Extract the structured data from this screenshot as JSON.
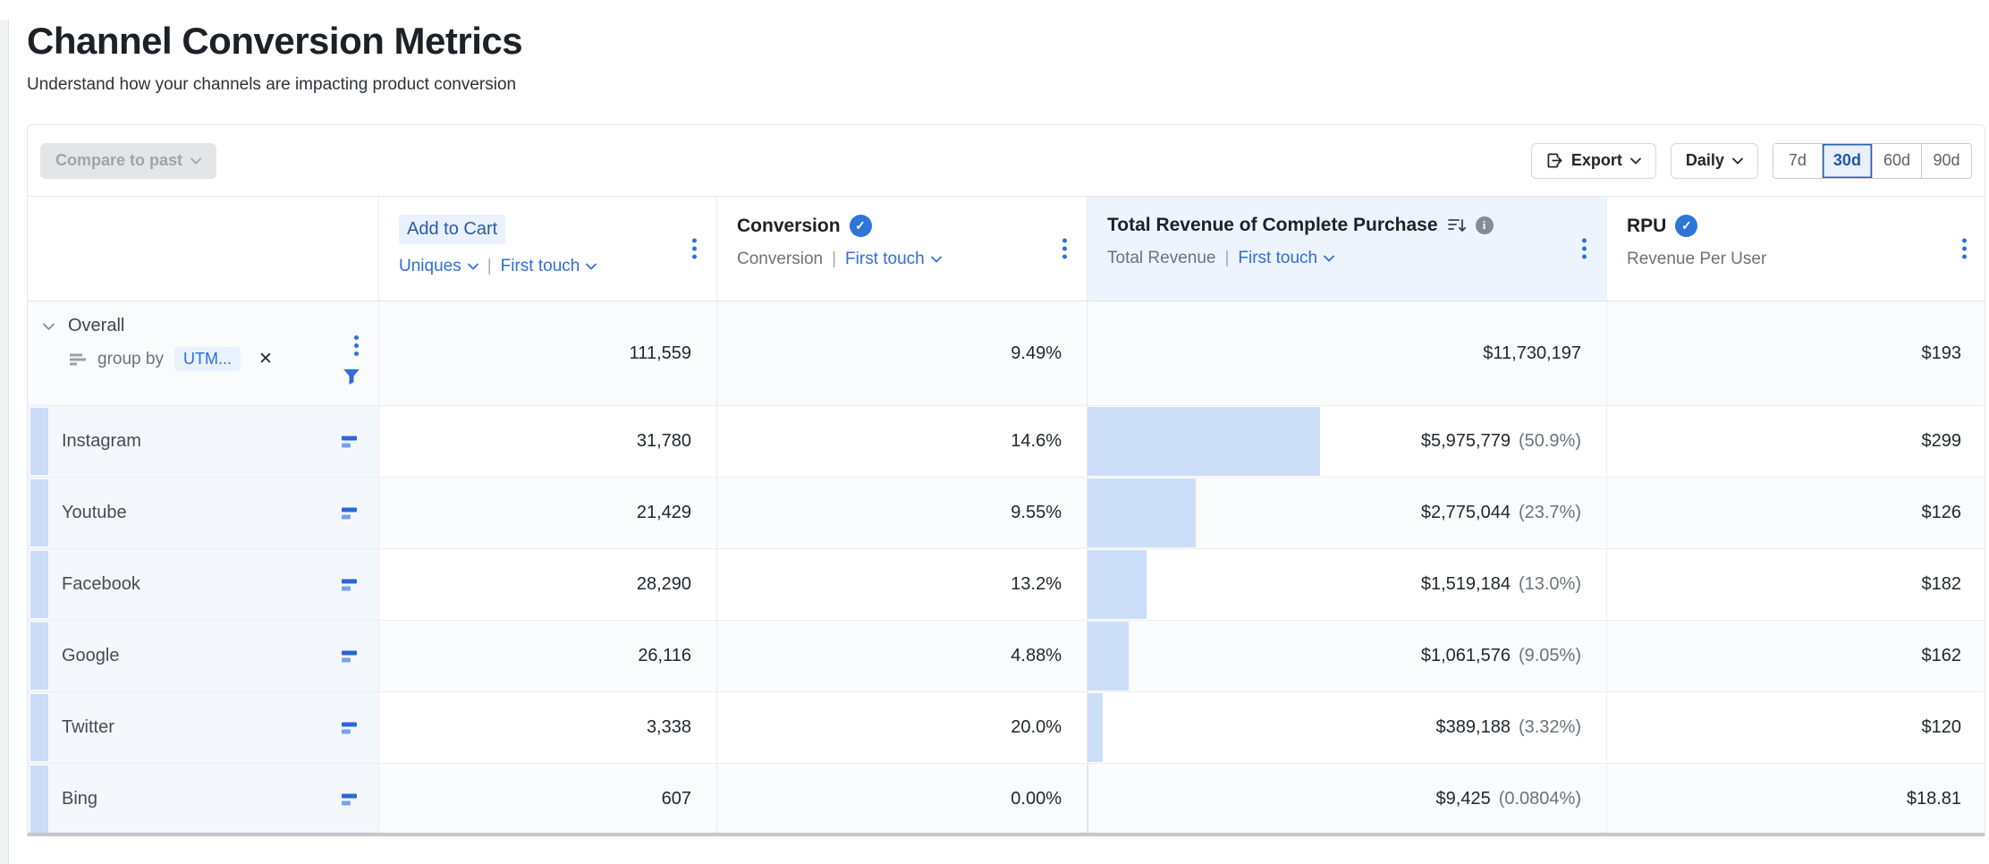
{
  "page": {
    "title": "Channel Conversion Metrics",
    "subtitle": "Understand how your channels are impacting product conversion"
  },
  "toolbar": {
    "compare_label": "Compare to past",
    "export_label": "Export",
    "interval_label": "Daily",
    "selected_range": "30d",
    "ranges": [
      {
        "label": "7d"
      },
      {
        "label": "30d"
      },
      {
        "label": "60d"
      },
      {
        "label": "90d"
      }
    ]
  },
  "table": {
    "columns": {
      "add_to_cart": {
        "title": "Add to Cart",
        "metric": "Uniques",
        "sep": "|",
        "attribution": "First touch"
      },
      "conversion": {
        "title": "Conversion",
        "metric": "Conversion",
        "sep": "|",
        "attribution": "First touch"
      },
      "revenue": {
        "title": "Total Revenue of Complete Purchase",
        "metric": "Total Revenue",
        "sep": "|",
        "attribution": "First touch"
      },
      "rpu": {
        "title": "RPU",
        "subtitle": "Revenue Per User"
      }
    },
    "overall": {
      "label": "Overall",
      "group_by_label": "group by",
      "group_by_value": "UTM...",
      "close_glyph": "✕",
      "add_to_cart": "111,559",
      "conversion": "9.49%",
      "revenue": "$11,730,197",
      "rpu": "$193"
    },
    "rows": [
      {
        "channel": "Instagram",
        "add_to_cart": "31,780",
        "conversion": "14.6%",
        "revenue": "$5,975,779",
        "revenue_pct": "(50.9%)",
        "bar_pct": 50.9,
        "rpu": "$299"
      },
      {
        "channel": "Youtube",
        "add_to_cart": "21,429",
        "conversion": "9.55%",
        "revenue": "$2,775,044",
        "revenue_pct": "(23.7%)",
        "bar_pct": 23.7,
        "rpu": "$126"
      },
      {
        "channel": "Facebook",
        "add_to_cart": "28,290",
        "conversion": "13.2%",
        "revenue": "$1,519,184",
        "revenue_pct": "(13.0%)",
        "bar_pct": 13.0,
        "rpu": "$182"
      },
      {
        "channel": "Google",
        "add_to_cart": "26,116",
        "conversion": "4.88%",
        "revenue": "$1,061,576",
        "revenue_pct": "(9.05%)",
        "bar_pct": 9.05,
        "rpu": "$162"
      },
      {
        "channel": "Twitter",
        "add_to_cart": "3,338",
        "conversion": "20.0%",
        "revenue": "$389,188",
        "revenue_pct": "(3.32%)",
        "bar_pct": 3.32,
        "rpu": "$120"
      },
      {
        "channel": "Bing",
        "add_to_cart": "607",
        "conversion": "0.00%",
        "revenue": "$9,425",
        "revenue_pct": "(0.0804%)",
        "bar_pct": 0.0804,
        "rpu": "$18.81"
      }
    ]
  },
  "colors": {
    "accent_blue": "#2e6edb",
    "bar_fill": "#ccddf8",
    "chip_bg": "#e9f1fc",
    "header_highlight_bg": "#edf4fd",
    "selected_range_bg": "#e8f0fb",
    "selected_range_border": "#2760b5",
    "row_stripe": "#cbdcf8"
  }
}
